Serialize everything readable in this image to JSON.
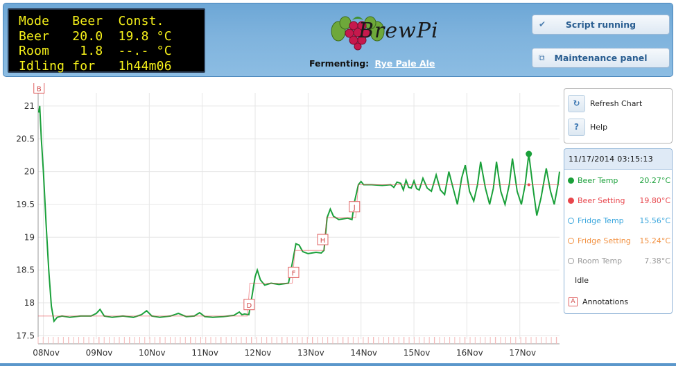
{
  "lcd": {
    "lines": [
      "Mode   Beer  Const.",
      "Beer   20.0  19.8 °C",
      "Room    1.8  --.- °C",
      "Idling for   1h44m06"
    ]
  },
  "brand": {
    "name": "BrewPi"
  },
  "fermenting": {
    "label": "Fermenting:",
    "beer_name": "Rye Pale Ale"
  },
  "header_buttons": {
    "script": "Script running",
    "maintenance": "Maintenance panel"
  },
  "side_buttons": {
    "refresh": "Refresh Chart",
    "help": "Help",
    "help_icon": "?"
  },
  "legend": {
    "timestamp": "11/17/2014 03:15:13",
    "rows": [
      {
        "name": "Beer Temp",
        "value": "20.27°C",
        "color": "#1aa03a",
        "filled": true
      },
      {
        "name": "Beer Setting",
        "value": "19.80°C",
        "color": "#e8464c",
        "filled": true
      },
      {
        "name": "Fridge Temp",
        "value": "15.56°C",
        "color": "#3aa6dd",
        "filled": false
      },
      {
        "name": "Fridge Setting",
        "value": "15.24°C",
        "color": "#f29141",
        "filled": false
      },
      {
        "name": "Room Temp",
        "value": "7.38°C",
        "color": "#999999",
        "filled": false
      }
    ],
    "state": "Idle",
    "annotations_label": "Annotations",
    "annotations_marker": "A"
  },
  "colors": {
    "beer_temp": "#1aa03a",
    "beer_setting": "#e8464c",
    "header_blue": "#7fb3dd",
    "lcd_text": "#f7f21a"
  },
  "chart_data": {
    "type": "line",
    "x_unit": "days (Nov 2014)",
    "xlim": [
      7.9,
      17.75
    ],
    "ylim": [
      17.45,
      21.2
    ],
    "y_ticks": [
      "17.5",
      "18",
      "18.5",
      "19",
      "19.5",
      "20",
      "20.5",
      "21"
    ],
    "x_ticks": [
      {
        "label": "08Nov",
        "x": 8
      },
      {
        "label": "09Nov",
        "x": 9
      },
      {
        "label": "10Nov",
        "x": 10
      },
      {
        "label": "11Nov",
        "x": 11
      },
      {
        "label": "12Nov",
        "x": 12
      },
      {
        "label": "13Nov",
        "x": 13
      },
      {
        "label": "14Nov",
        "x": 14
      },
      {
        "label": "15Nov",
        "x": 15
      },
      {
        "label": "16Nov",
        "x": 16
      },
      {
        "label": "17Nov",
        "x": 17
      }
    ],
    "grid": true,
    "series": [
      {
        "name": "Beer Temp",
        "color": "#1aa03a",
        "points": [
          [
            7.91,
            20.9
          ],
          [
            7.93,
            21.0
          ],
          [
            7.96,
            20.5
          ],
          [
            8.0,
            20.0
          ],
          [
            8.05,
            19.2
          ],
          [
            8.1,
            18.5
          ],
          [
            8.15,
            17.95
          ],
          [
            8.2,
            17.72
          ],
          [
            8.26,
            17.78
          ],
          [
            8.35,
            17.8
          ],
          [
            8.5,
            17.78
          ],
          [
            8.7,
            17.8
          ],
          [
            8.9,
            17.8
          ],
          [
            9.0,
            17.84
          ],
          [
            9.07,
            17.9
          ],
          [
            9.15,
            17.8
          ],
          [
            9.3,
            17.78
          ],
          [
            9.5,
            17.8
          ],
          [
            9.7,
            17.78
          ],
          [
            9.85,
            17.82
          ],
          [
            9.95,
            17.88
          ],
          [
            10.05,
            17.8
          ],
          [
            10.2,
            17.78
          ],
          [
            10.4,
            17.8
          ],
          [
            10.55,
            17.84
          ],
          [
            10.7,
            17.79
          ],
          [
            10.85,
            17.8
          ],
          [
            10.95,
            17.85
          ],
          [
            11.05,
            17.79
          ],
          [
            11.2,
            17.78
          ],
          [
            11.4,
            17.79
          ],
          [
            11.6,
            17.81
          ],
          [
            11.7,
            17.86
          ],
          [
            11.75,
            17.82
          ],
          [
            11.8,
            17.83
          ],
          [
            11.88,
            17.82
          ],
          [
            11.94,
            18.1
          ],
          [
            12.0,
            18.4
          ],
          [
            12.04,
            18.5
          ],
          [
            12.1,
            18.35
          ],
          [
            12.18,
            18.27
          ],
          [
            12.3,
            18.3
          ],
          [
            12.45,
            18.28
          ],
          [
            12.63,
            18.3
          ],
          [
            12.7,
            18.6
          ],
          [
            12.77,
            18.9
          ],
          [
            12.83,
            18.88
          ],
          [
            12.9,
            18.78
          ],
          [
            13.0,
            18.75
          ],
          [
            13.15,
            18.77
          ],
          [
            13.25,
            18.76
          ],
          [
            13.3,
            18.8
          ],
          [
            13.36,
            19.3
          ],
          [
            13.42,
            19.43
          ],
          [
            13.48,
            19.32
          ],
          [
            13.58,
            19.27
          ],
          [
            13.75,
            19.29
          ],
          [
            13.83,
            19.27
          ],
          [
            13.88,
            19.55
          ],
          [
            13.95,
            19.8
          ],
          [
            14.0,
            19.85
          ],
          [
            14.05,
            19.8
          ],
          [
            14.2,
            19.8
          ],
          [
            14.4,
            19.79
          ],
          [
            14.56,
            19.8
          ],
          [
            14.62,
            19.76
          ],
          [
            14.68,
            19.84
          ],
          [
            14.75,
            19.82
          ],
          [
            14.8,
            19.72
          ],
          [
            14.85,
            19.87
          ],
          [
            14.9,
            19.76
          ],
          [
            14.95,
            19.75
          ],
          [
            15.0,
            19.86
          ],
          [
            15.05,
            19.74
          ],
          [
            15.1,
            19.72
          ],
          [
            15.17,
            19.9
          ],
          [
            15.25,
            19.75
          ],
          [
            15.33,
            19.7
          ],
          [
            15.42,
            19.95
          ],
          [
            15.5,
            19.72
          ],
          [
            15.58,
            19.65
          ],
          [
            15.66,
            20.0
          ],
          [
            15.74,
            19.75
          ],
          [
            15.82,
            19.5
          ],
          [
            15.9,
            19.9
          ],
          [
            15.97,
            20.1
          ],
          [
            16.05,
            19.7
          ],
          [
            16.13,
            19.55
          ],
          [
            16.2,
            19.8
          ],
          [
            16.26,
            20.15
          ],
          [
            16.35,
            19.75
          ],
          [
            16.43,
            19.5
          ],
          [
            16.5,
            19.75
          ],
          [
            16.56,
            20.15
          ],
          [
            16.64,
            19.7
          ],
          [
            16.72,
            19.5
          ],
          [
            16.8,
            19.8
          ],
          [
            16.86,
            20.2
          ],
          [
            16.95,
            19.7
          ],
          [
            17.03,
            19.5
          ],
          [
            17.1,
            19.8
          ],
          [
            17.17,
            20.27
          ],
          [
            17.25,
            19.75
          ],
          [
            17.32,
            19.33
          ],
          [
            17.4,
            19.6
          ],
          [
            17.5,
            20.05
          ],
          [
            17.58,
            19.7
          ],
          [
            17.65,
            19.5
          ],
          [
            17.72,
            19.8
          ],
          [
            17.75,
            20.0
          ]
        ]
      },
      {
        "name": "Beer Setting",
        "color": "#e8464c",
        "points": [
          [
            7.9,
            17.8
          ],
          [
            11.85,
            17.8
          ],
          [
            11.9,
            18.3
          ],
          [
            12.7,
            18.3
          ],
          [
            12.75,
            18.8
          ],
          [
            13.3,
            18.8
          ],
          [
            13.35,
            19.3
          ],
          [
            13.9,
            19.3
          ],
          [
            13.95,
            19.8
          ],
          [
            17.75,
            19.8
          ]
        ]
      }
    ],
    "marker": {
      "x": 17.17,
      "y": 20.27
    },
    "annotations": [
      {
        "label": "B",
        "x": 7.91,
        "y": 21.27
      },
      {
        "label": "D",
        "x": 11.88,
        "y": 17.97
      },
      {
        "label": "F",
        "x": 12.72,
        "y": 18.46
      },
      {
        "label": "H",
        "x": 13.27,
        "y": 18.96
      },
      {
        "label": "J",
        "x": 13.87,
        "y": 19.46
      }
    ]
  }
}
